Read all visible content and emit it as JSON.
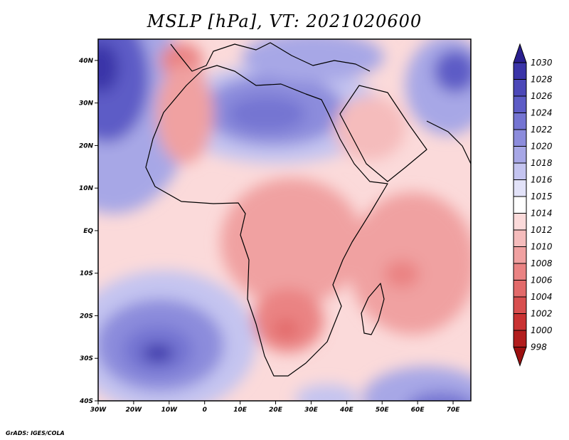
{
  "title": "MSLP [hPa], VT: 2021020600",
  "footer": "GrADS: IGES/COLA",
  "chart_data": {
    "type": "heatmap",
    "field": "MSLP",
    "units": "hPa",
    "valid_time": "2021020600",
    "lon_range": [
      -30,
      75
    ],
    "lat_range": [
      -40,
      45
    ],
    "x_ticks": [
      "30W",
      "20W",
      "10W",
      "0",
      "10E",
      "20E",
      "30E",
      "40E",
      "50E",
      "60E",
      "70E"
    ],
    "y_ticks": [
      "40N",
      "30N",
      "20N",
      "10N",
      "EQ",
      "10S",
      "20S",
      "30S",
      "40S"
    ],
    "colorbar": {
      "levels": [
        1030,
        1028,
        1026,
        1024,
        1022,
        1020,
        1018,
        1016,
        1015,
        1014,
        1012,
        1010,
        1008,
        1006,
        1004,
        1002,
        1000,
        998
      ],
      "colors": [
        "#2a1f8f",
        "#3a34a8",
        "#4c48b8",
        "#5d5cc6",
        "#7474d2",
        "#8c8cdc",
        "#a7a7e6",
        "#c4c4f0",
        "#e2e2f8",
        "#ffffff",
        "#fbdada",
        "#f5bcbc",
        "#f0a1a1",
        "#ea8383",
        "#e26a6a",
        "#d84f4f",
        "#c93232",
        "#b21d1d",
        "#9c1010"
      ]
    },
    "pressure_centers": [
      {
        "type": "high",
        "lon": -13,
        "lat": -29,
        "approx_hPa": 1026
      },
      {
        "type": "high",
        "lon": -28,
        "lat": 40,
        "approx_hPa": 1028
      },
      {
        "type": "high",
        "lon": 70,
        "lat": 38,
        "approx_hPa": 1026
      },
      {
        "type": "high",
        "lon": 22,
        "lat": 28,
        "approx_hPa": 1022
      },
      {
        "type": "low",
        "lon": 23,
        "lat": -25,
        "approx_hPa": 1006
      },
      {
        "type": "low",
        "lon": 55,
        "lat": -11,
        "approx_hPa": 1006
      },
      {
        "type": "low",
        "lon": -5,
        "lat": 40,
        "approx_hPa": 1008
      },
      {
        "type": "high",
        "lon": 62,
        "lat": -38,
        "approx_hPa": 1022
      },
      {
        "type": "high",
        "lon": 35,
        "lat": -38,
        "approx_hPa": 1020
      }
    ]
  }
}
